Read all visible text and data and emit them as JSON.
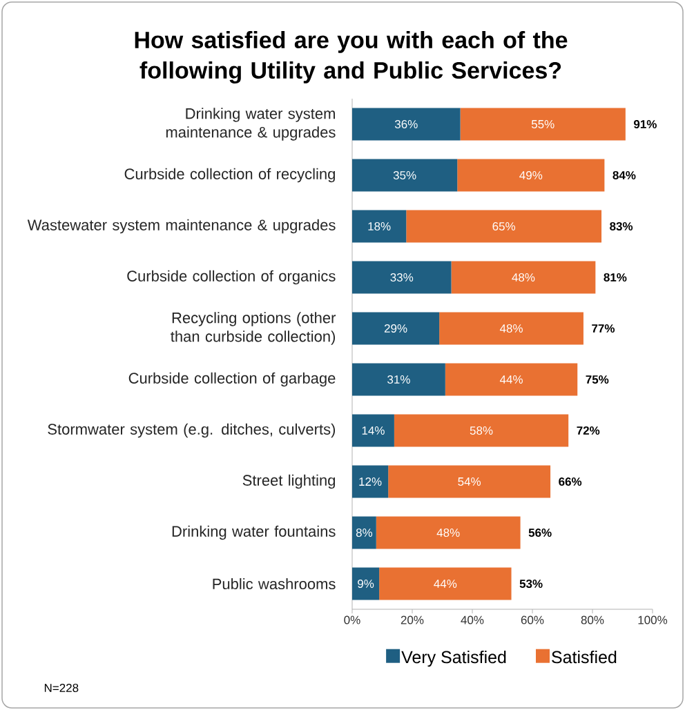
{
  "chart_data": {
    "type": "bar",
    "orientation": "horizontal",
    "stacked": true,
    "title": "How satisfied are you with each of the following Utility and Public Services?",
    "categories": [
      "Drinking water system maintenance & upgrades",
      "Curbside collection of recycling",
      "Wastewater system maintenance & upgrades",
      "Curbside collection of organics",
      "Recycling options (other than curbside collection)",
      "Curbside collection of garbage",
      "Stormwater system (e.g. ditches, culverts)",
      "Street lighting",
      "Drinking water fountains",
      "Public washrooms"
    ],
    "series": [
      {
        "name": "Very Satisfied",
        "color": "#1f5f82",
        "values": [
          36,
          35,
          18,
          33,
          29,
          31,
          14,
          12,
          8,
          9
        ],
        "value_labels": [
          "36%",
          "35%",
          "18%",
          "33%",
          "29%",
          "31%",
          "14%",
          "12%",
          "8%",
          "9%"
        ]
      },
      {
        "name": "Satisfied",
        "color": "#e97132",
        "values": [
          55,
          49,
          65,
          48,
          48,
          44,
          58,
          54,
          48,
          44
        ],
        "value_labels": [
          "55%",
          "49%",
          "65%",
          "48%",
          "48%",
          "44%",
          "58%",
          "54%",
          "48%",
          "44%"
        ]
      }
    ],
    "totals": [
      "91%",
      "84%",
      "83%",
      "81%",
      "77%",
      "75%",
      "72%",
      "66%",
      "56%",
      "53%"
    ],
    "xlim": [
      0,
      100
    ],
    "xticks": [
      {
        "value": 0,
        "label": "0%"
      },
      {
        "value": 20,
        "label": "20%"
      },
      {
        "value": 40,
        "label": "40%"
      },
      {
        "value": 60,
        "label": "60%"
      },
      {
        "value": 80,
        "label": "80%"
      },
      {
        "value": 100,
        "label": "100%"
      }
    ],
    "legend": "bottom",
    "annotations": [
      "N=228"
    ]
  }
}
